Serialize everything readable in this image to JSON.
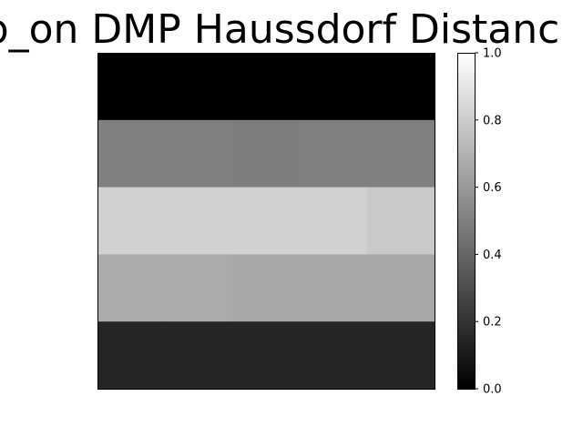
{
  "chart_data": {
    "type": "heatmap",
    "title": "p_on DMP Haussdorf Distanc",
    "xlabel": "",
    "ylabel": "",
    "colormap": "gray",
    "colorbar": {
      "range": [
        0.0,
        1.0
      ],
      "ticks": [
        0.0,
        0.2,
        0.4,
        0.6,
        0.8,
        1.0
      ],
      "tick_labels": [
        "0.0",
        "0.2",
        "0.4",
        "0.6",
        "0.8",
        "1.0"
      ]
    },
    "rows": 5,
    "columns": 5,
    "values": [
      [
        0.0,
        0.0,
        0.0,
        0.0,
        0.0
      ],
      [
        0.5,
        0.5,
        0.49,
        0.5,
        0.5
      ],
      [
        0.82,
        0.82,
        0.82,
        0.82,
        0.79
      ],
      [
        0.67,
        0.67,
        0.66,
        0.66,
        0.66
      ],
      [
        0.15,
        0.15,
        0.15,
        0.15,
        0.15
      ]
    ]
  }
}
